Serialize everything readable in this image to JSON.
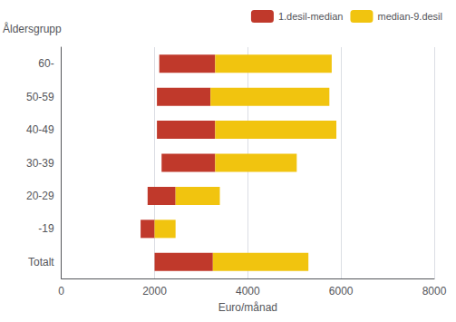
{
  "chart_data": {
    "type": "floating_bar",
    "orientation": "horizontal",
    "categories": [
      "Totalt",
      "-19",
      "20-29",
      "30-39",
      "40-49",
      "50-59",
      "60-"
    ],
    "series": [
      {
        "name": "1.desil-median",
        "color": "#C0392B",
        "values": [
          [
            2000,
            3250
          ],
          [
            1700,
            2000
          ],
          [
            1850,
            2450
          ],
          [
            2150,
            3300
          ],
          [
            2050,
            3300
          ],
          [
            2050,
            3200
          ],
          [
            2100,
            3300
          ]
        ]
      },
      {
        "name": "median-9.desil",
        "color": "#F1C40F",
        "values": [
          [
            3250,
            5300
          ],
          [
            2000,
            2450
          ],
          [
            2450,
            3400
          ],
          [
            3300,
            5050
          ],
          [
            3300,
            5900
          ],
          [
            3200,
            5750
          ],
          [
            3300,
            5800
          ]
        ]
      }
    ],
    "xlabel": "Euro/månad",
    "ylabel": "Åldersgrupp",
    "xlim": [
      0,
      8000
    ],
    "xticks": [
      0,
      2000,
      4000,
      6000,
      8000
    ],
    "grid": true,
    "legend": "top right"
  }
}
